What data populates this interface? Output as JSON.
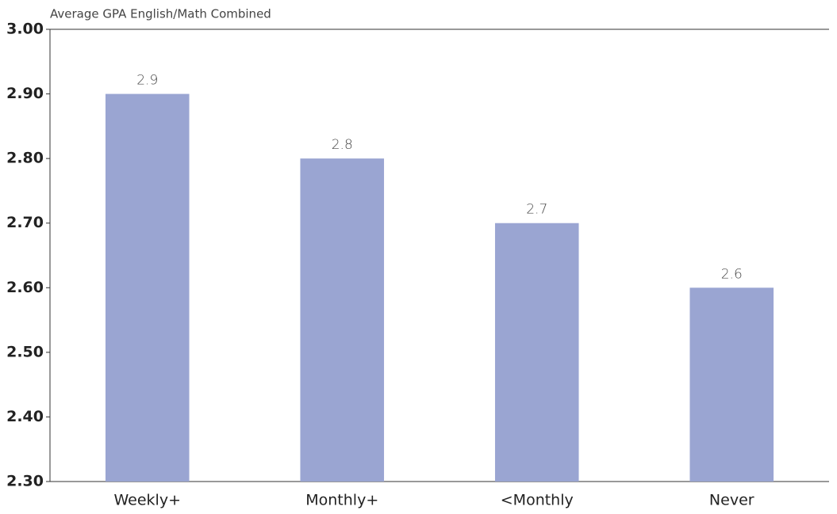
{
  "chart_data": {
    "type": "bar",
    "y_axis_label": "Average GPA English/Math Combined",
    "categories": [
      "Weekly+",
      "Monthly+",
      "<Monthly",
      "Never"
    ],
    "values": [
      2.9,
      2.8,
      2.7,
      2.6
    ],
    "color": "#9aa5d2",
    "ylim": [
      2.3,
      3.0
    ],
    "yticks": [
      {
        "value": 2.3,
        "label": "2.30"
      },
      {
        "value": 2.4,
        "label": "2.40"
      },
      {
        "value": 2.5,
        "label": "2.50"
      },
      {
        "value": 2.6,
        "label": "2.60"
      },
      {
        "value": 2.7,
        "label": "2.70"
      },
      {
        "value": 2.8,
        "label": "2.80"
      },
      {
        "value": 2.9,
        "label": "2.90"
      },
      {
        "value": 3.0,
        "label": "3.00"
      }
    ],
    "grid": false
  }
}
